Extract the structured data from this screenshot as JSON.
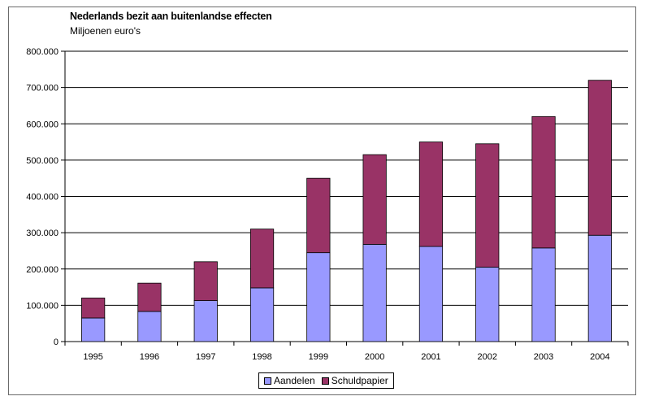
{
  "chart_data": {
    "type": "bar",
    "stacked": true,
    "title": "Nederlands bezit aan buitenlandse effecten",
    "subtitle": "Miljoenen euro's",
    "categories": [
      "1995",
      "1996",
      "1997",
      "1998",
      "1999",
      "2000",
      "2001",
      "2002",
      "2003",
      "2004"
    ],
    "series": [
      {
        "name": "Aandelen",
        "color": "#9999ff",
        "values": [
          65000,
          83000,
          113000,
          148000,
          245000,
          268000,
          262000,
          205000,
          258000,
          293000
        ]
      },
      {
        "name": "Schuldpapier",
        "color": "#993366",
        "values": [
          55000,
          78000,
          107000,
          162000,
          205000,
          247000,
          288000,
          340000,
          362000,
          427000
        ]
      }
    ],
    "ylim": [
      0,
      800000
    ],
    "yticks": [
      0,
      100000,
      200000,
      300000,
      400000,
      500000,
      600000,
      700000,
      800000
    ],
    "ytick_labels": [
      "0",
      "100.000",
      "200.000",
      "300.000",
      "400.000",
      "500.000",
      "600.000",
      "700.000",
      "800.000"
    ],
    "grid": true,
    "legend_position": "bottom"
  }
}
